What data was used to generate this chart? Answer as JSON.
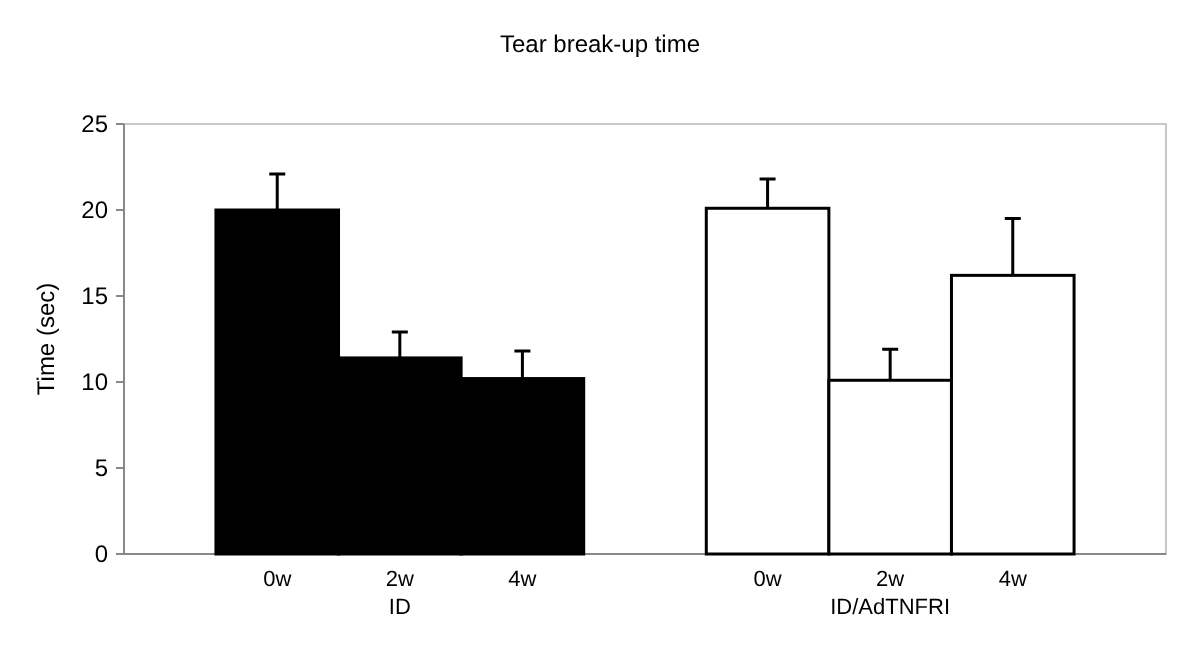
{
  "chart_data": {
    "type": "bar",
    "title": "Tear break-up time",
    "ylabel": "Time (sec)",
    "categories": [
      "0w",
      "2w",
      "4w",
      null,
      "0w",
      "2w",
      "4w"
    ],
    "series": [
      {
        "name": "ID",
        "color": "#000000",
        "values": [
          20,
          11.4,
          10.2,
          null,
          null,
          null,
          null
        ],
        "errors": [
          [
            20,
            22.1
          ],
          [
            11.4,
            12.9
          ],
          [
            10.2,
            11.8
          ],
          null,
          null,
          null,
          null
        ]
      },
      {
        "name": "ID/AdTNFRI",
        "color": "#ffffff",
        "values": [
          null,
          null,
          null,
          null,
          20.1,
          10.1,
          16.2
        ],
        "errors": [
          null,
          null,
          null,
          null,
          [
            20.1,
            21.8
          ],
          [
            10.1,
            11.9
          ],
          [
            16.2,
            19.5
          ]
        ]
      }
    ],
    "ylim": [
      0,
      25
    ],
    "yticks": [
      0,
      5,
      10,
      15,
      20,
      25
    ],
    "grid": false,
    "legend": false
  }
}
